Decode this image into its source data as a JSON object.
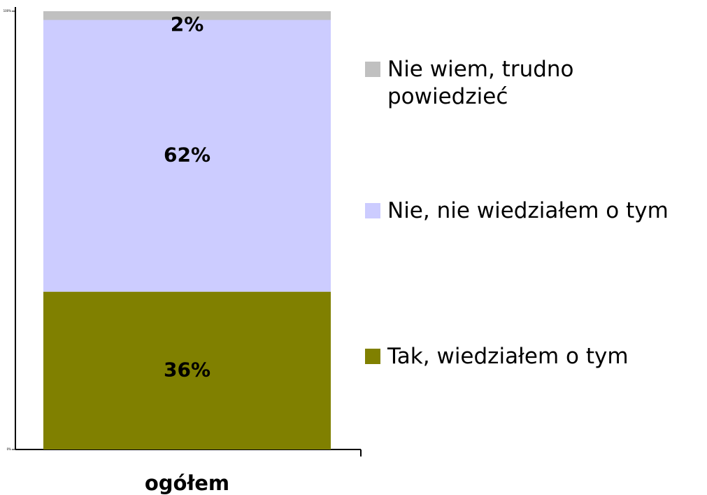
{
  "chart_data": {
    "type": "stacked_bar",
    "categories": [
      "ogółem"
    ],
    "series": [
      {
        "name": "Tak, wiedziałem o tym",
        "color": "#808000",
        "values": [
          36
        ],
        "value_labels": [
          "36%"
        ]
      },
      {
        "name": "Nie, nie wiedziałem o tym",
        "color": "#ccccff",
        "values": [
          62
        ],
        "value_labels": [
          "62%"
        ]
      },
      {
        "name": "Nie wiem, trudno powiedzieć",
        "color": "#c0c0c0",
        "values": [
          2
        ],
        "value_labels": [
          "2%"
        ]
      }
    ],
    "ylim": [
      0,
      100
    ],
    "yticks": [
      {
        "value": 0,
        "label": "0%"
      },
      {
        "value": 100,
        "label": "100%"
      }
    ],
    "legend": "right"
  }
}
